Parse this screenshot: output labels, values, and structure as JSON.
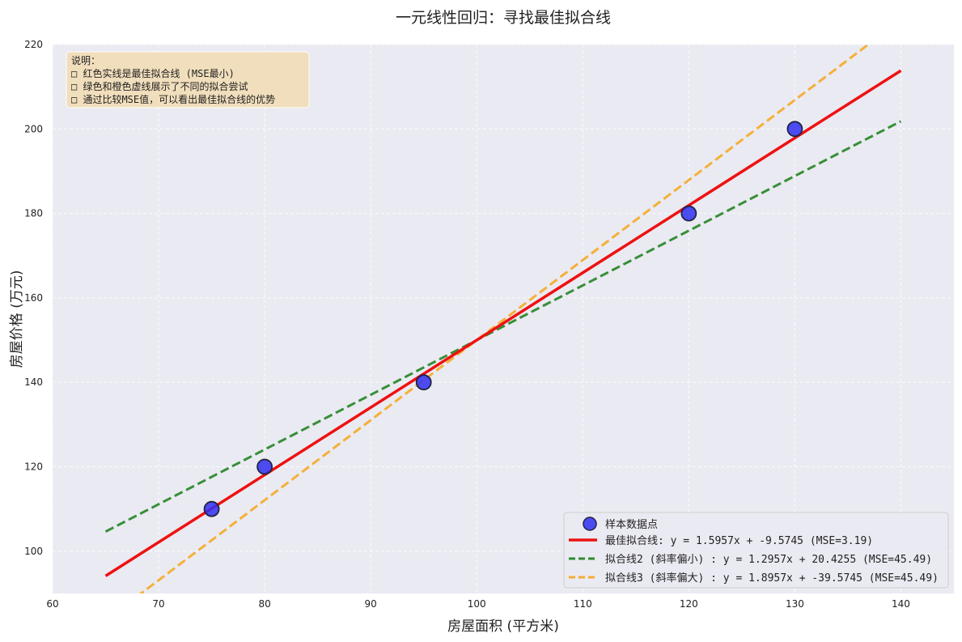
{
  "chart_data": {
    "type": "scatter",
    "title": "一元线性回归：寻找最佳拟合线",
    "xlabel": "房屋面积 (平方米)",
    "ylabel": "房屋价格 (万元)",
    "xlim": [
      60,
      145
    ],
    "ylim": [
      90,
      220
    ],
    "x_ticks": [
      60,
      70,
      80,
      90,
      100,
      110,
      120,
      130,
      140
    ],
    "y_ticks": [
      100,
      120,
      140,
      160,
      180,
      200,
      220
    ],
    "grid": true,
    "legend_position": "bottom-right",
    "points": {
      "name": "样本数据点",
      "color": "#2f2ff2",
      "x": [
        75,
        80,
        95,
        120,
        130
      ],
      "y": [
        110,
        120,
        140,
        180,
        200
      ]
    },
    "lines": [
      {
        "name": "最佳拟合线: y = 1.5957x + -9.5745 (MSE=3.19)",
        "slope": 1.5957,
        "intercept": -9.5745,
        "x_range": [
          65,
          140
        ],
        "color": "#ee1111",
        "style": "solid"
      },
      {
        "name": "拟合线2 (斜率偏小) : y = 1.2957x + 20.4255 (MSE=45.49)",
        "slope": 1.2957,
        "intercept": 20.4255,
        "x_range": [
          65,
          140
        ],
        "color": "#2e8b2e",
        "style": "dashed"
      },
      {
        "name": "拟合线3 (斜率偏大) : y = 1.8957x + -39.5745 (MSE=45.49)",
        "slope": 1.8957,
        "intercept": -39.5745,
        "x_range": [
          65,
          140
        ],
        "color": "#f5ad2f",
        "style": "dashed"
      }
    ],
    "annotation": {
      "lines": [
        "说明：",
        "□ 红色实线是最佳拟合线 (MSE最小)",
        "□ 绿色和橙色虚线展示了不同的拟合尝试",
        "□ 通过比较MSE值，可以看出最佳拟合线的优势"
      ],
      "position": "top-left"
    },
    "colors": {
      "plot_background": "#eaeaf2",
      "grid": "#ffffff",
      "annotation_background": "#f2ddb8"
    }
  }
}
